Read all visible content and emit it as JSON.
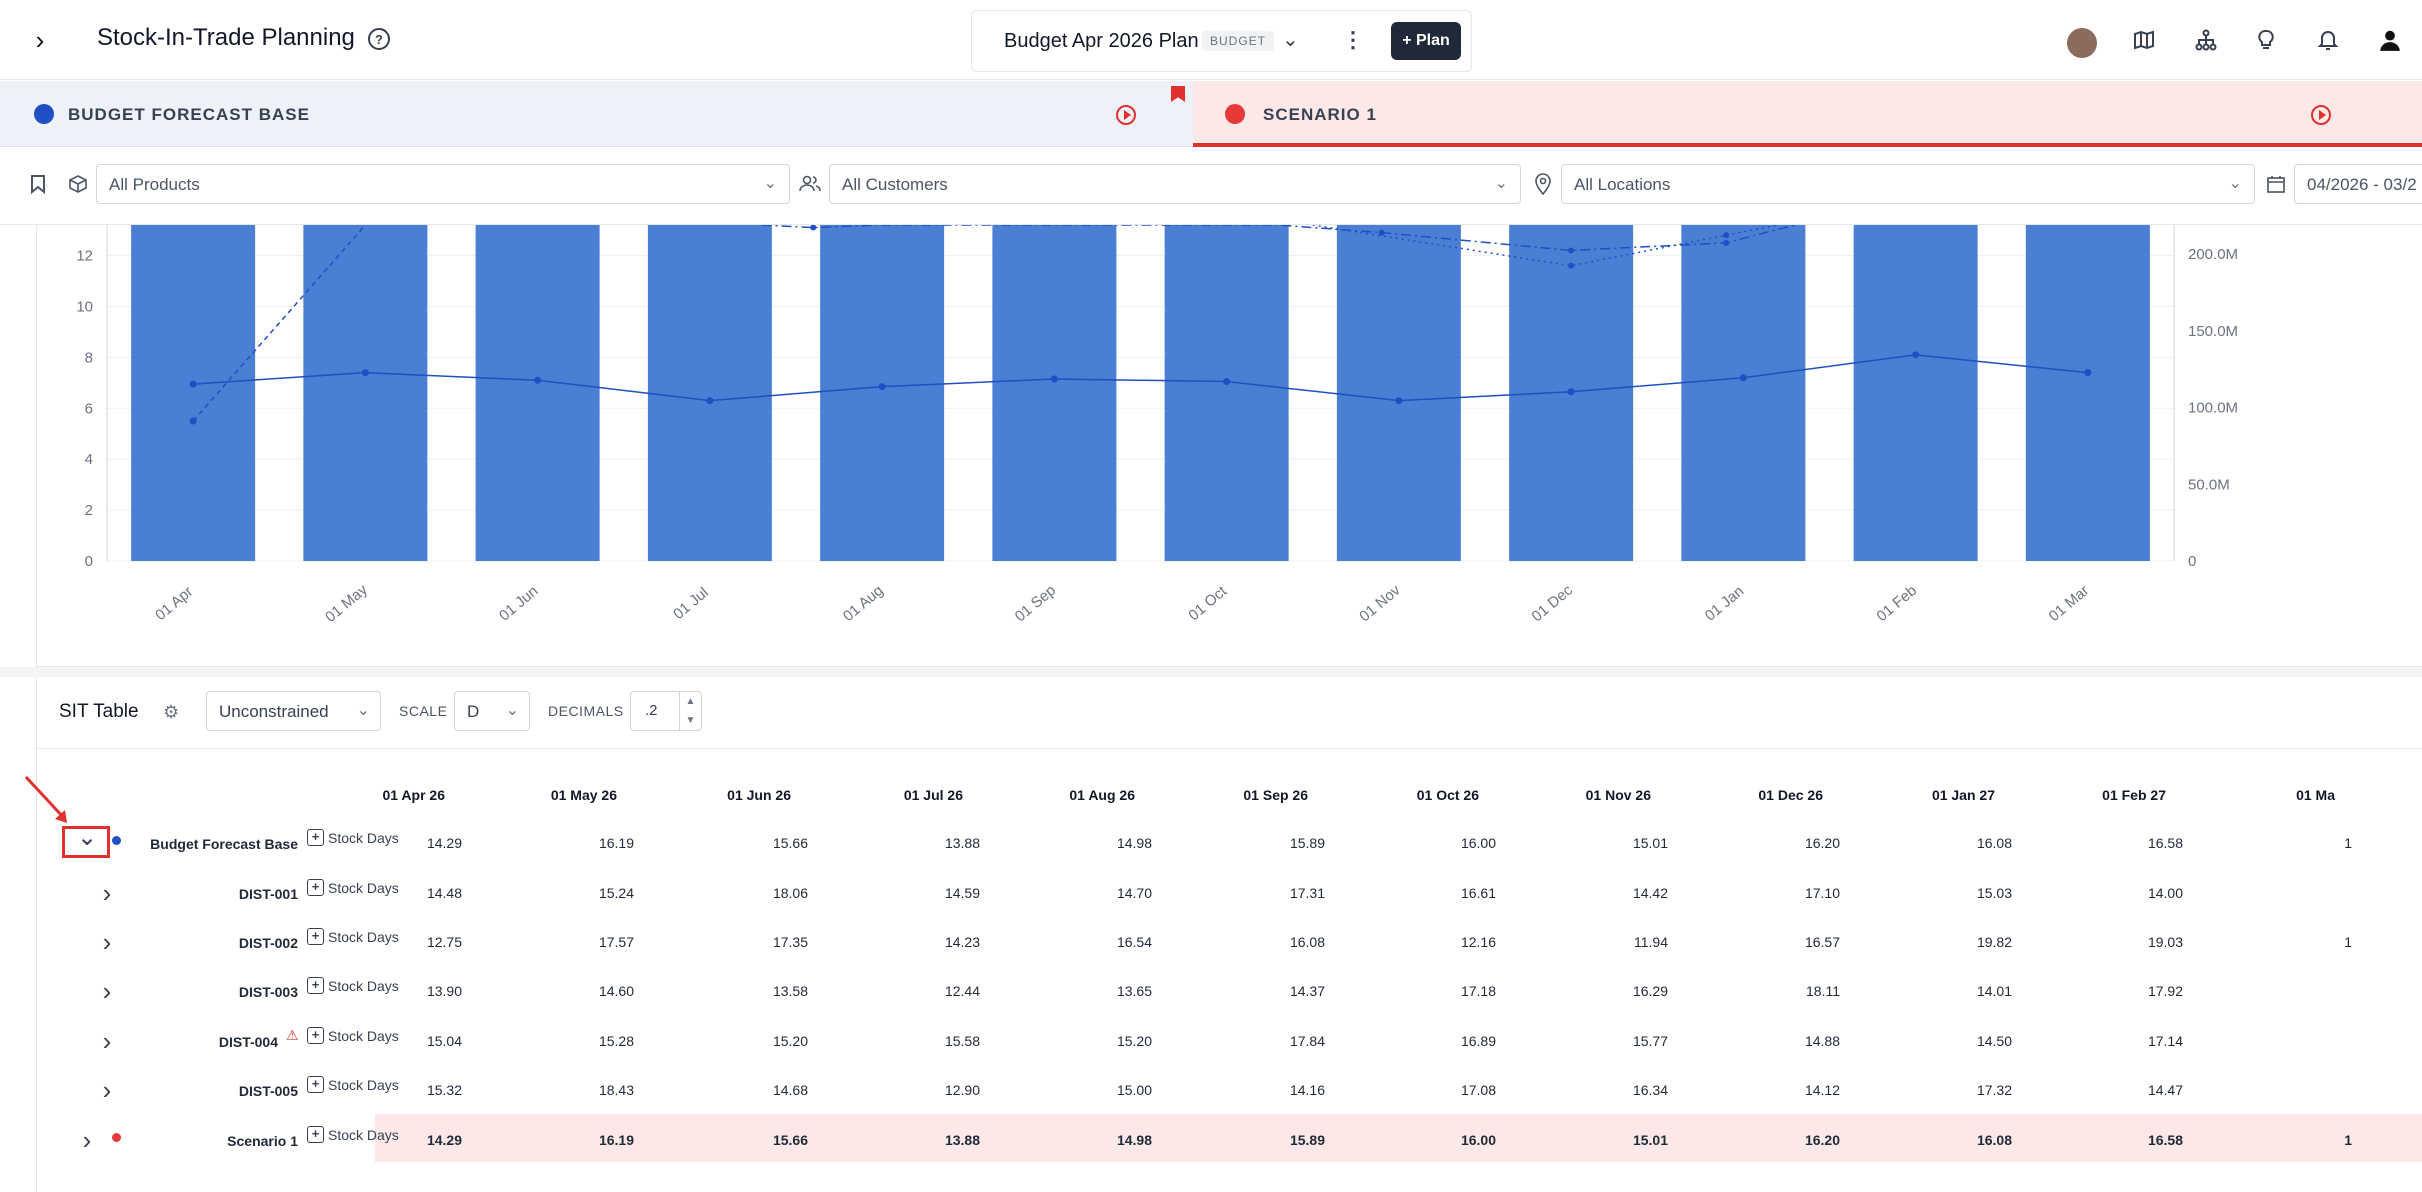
{
  "header": {
    "title": "Stock-In-Trade Planning",
    "plan_name": "Budget Apr 2026 Plan",
    "plan_badge": "BUDGET",
    "plus_plan": "+ Plan"
  },
  "tabs": [
    {
      "label": "BUDGET FORECAST BASE",
      "color": "#1f4fc4"
    },
    {
      "label": "SCENARIO 1",
      "color": "#e8393a"
    }
  ],
  "filters": {
    "products": "All Products",
    "customers": "All Customers",
    "locations": "All Locations",
    "date_range": "04/2026 - 03/2"
  },
  "chart_data": {
    "type": "bar",
    "categories": [
      "01 Apr",
      "01 May",
      "01 Jun",
      "01 Jul",
      "01 Aug",
      "01 Sep",
      "01 Oct",
      "01 Nov",
      "01 Dec",
      "01 Jan",
      "01 Feb",
      "01 Mar"
    ],
    "left_axis_ticks": [
      "0",
      "2",
      "4",
      "6",
      "8",
      "10",
      "12"
    ],
    "right_axis_ticks": [
      "0",
      "50.0M",
      "100.0M",
      "150.0M",
      "200.0M"
    ],
    "ylim_left": [
      0,
      13.2
    ],
    "ylim_right": [
      0,
      219
    ],
    "series": [
      {
        "type": "bar",
        "axis": "right",
        "values": [
          219,
          219,
          219,
          219,
          219,
          219,
          219,
          219,
          219,
          219,
          219,
          219
        ],
        "color": "#4a7fd3"
      },
      {
        "type": "line",
        "axis": "left",
        "values": [
          6.95,
          7.4,
          7.1,
          6.3,
          6.85,
          7.15,
          7.05,
          6.3,
          6.65,
          7.2,
          8.1,
          7.4
        ],
        "color": "#1f4fc4"
      },
      {
        "type": "line-dashed",
        "axis": "left",
        "visible_points": [
          [
            0,
            5.5
          ],
          [
            1,
            13.2
          ]
        ],
        "color": "#1f4fc4"
      },
      {
        "type": "line-dashdot",
        "axis": "left",
        "visible_points": [
          [
            3.3,
            13.2
          ],
          [
            3.6,
            13.1
          ],
          [
            4,
            13.2
          ],
          [
            6.3,
            13.2
          ],
          [
            6.9,
            12.9
          ],
          [
            8,
            12.2
          ],
          [
            8.9,
            12.5
          ],
          [
            9.3,
            13.2
          ]
        ],
        "color": "#1f4fc4"
      },
      {
        "type": "line-dotted",
        "axis": "left",
        "visible_points": [
          [
            6.5,
            13.2
          ],
          [
            8,
            11.6
          ],
          [
            8.9,
            12.8
          ],
          [
            9.2,
            13.2
          ]
        ],
        "color": "#1f4fc4"
      }
    ]
  },
  "sit_table": {
    "title": "SIT Table",
    "constraint": "Unconstrained",
    "scale_label": "SCALE",
    "scale_value": "D",
    "decimals_label": "DECIMALS",
    "decimals_value": ".2",
    "columns": [
      "01 Apr 26",
      "01 May 26",
      "01 Jun 26",
      "01 Jul 26",
      "01 Aug 26",
      "01 Sep 26",
      "01 Oct 26",
      "01 Nov 26",
      "01 Dec 26",
      "01 Jan 27",
      "01 Feb 27",
      "01 Ma"
    ],
    "measure": "Stock Days",
    "rows": [
      {
        "name": "Budget Forecast Base",
        "values": [
          "14.29",
          "16.19",
          "15.66",
          "13.88",
          "14.98",
          "15.89",
          "16.00",
          "15.01",
          "16.20",
          "16.08",
          "16.58",
          "1"
        ]
      },
      {
        "name": "DIST-001",
        "values": [
          "14.48",
          "15.24",
          "18.06",
          "14.59",
          "14.70",
          "17.31",
          "16.61",
          "14.42",
          "17.10",
          "15.03",
          "14.00",
          ""
        ]
      },
      {
        "name": "DIST-002",
        "values": [
          "12.75",
          "17.57",
          "17.35",
          "14.23",
          "16.54",
          "16.08",
          "12.16",
          "11.94",
          "16.57",
          "19.82",
          "19.03",
          "1"
        ]
      },
      {
        "name": "DIST-003",
        "values": [
          "13.90",
          "14.60",
          "13.58",
          "12.44",
          "13.65",
          "14.37",
          "17.18",
          "16.29",
          "18.11",
          "14.01",
          "17.92",
          ""
        ]
      },
      {
        "name": "DIST-004",
        "values": [
          "15.04",
          "15.28",
          "15.20",
          "15.58",
          "15.20",
          "17.84",
          "16.89",
          "15.77",
          "14.88",
          "14.50",
          "17.14",
          ""
        ]
      },
      {
        "name": "DIST-005",
        "values": [
          "15.32",
          "18.43",
          "14.68",
          "12.90",
          "15.00",
          "14.16",
          "17.08",
          "16.34",
          "14.12",
          "17.32",
          "14.47",
          ""
        ]
      },
      {
        "name": "Scenario 1",
        "values": [
          "14.29",
          "16.19",
          "15.66",
          "13.88",
          "14.98",
          "15.89",
          "16.00",
          "15.01",
          "16.20",
          "16.08",
          "16.58",
          "1"
        ]
      }
    ]
  }
}
